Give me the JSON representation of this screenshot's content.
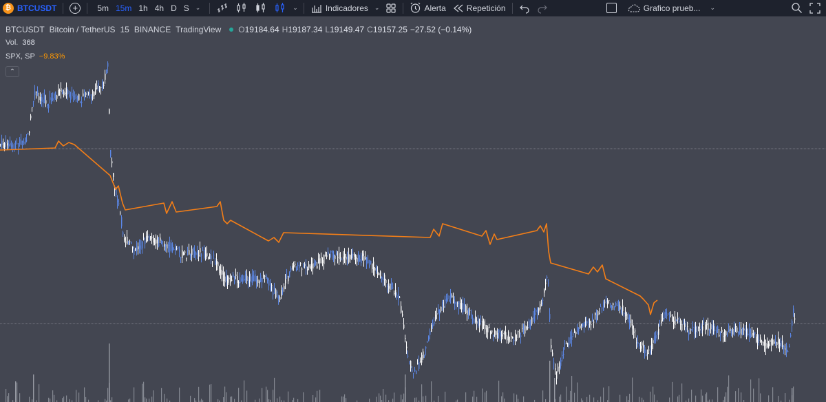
{
  "toolbar": {
    "symbol_badge": "₿",
    "symbol": "BTCUSDT",
    "add_symbol": "+",
    "intervals": [
      "5m",
      "15m",
      "1h",
      "4h",
      "D",
      "S"
    ],
    "active_interval": "15m",
    "indicators_label": "Indicadores",
    "alert_label": "Alerta",
    "replay_label": "Repetición",
    "layout_name": "Grafico prueb...",
    "chevron": "⌄",
    "dropdown_chevron": "⌄"
  },
  "legend": {
    "symbol": "BTCUSDT",
    "name": "Bitcoin / TetherUS",
    "interval": "15",
    "exchange": "BINANCE",
    "source": "TradingView",
    "open_key": "O",
    "open": "19184.64",
    "high_key": "H",
    "high": "19187.34",
    "low_key": "L",
    "low": "19149.47",
    "close_key": "C",
    "close": "19157.25",
    "change": "−27.52 (−0.14%)",
    "volume_label": "Vol.",
    "volume": "368",
    "compare_label": "SPX, SP",
    "compare_value": "−9.83%",
    "collapse_icon": "⌃"
  },
  "colors": {
    "background": "#434651",
    "toolbar": "#1e222d",
    "accent": "#2962ff",
    "candle_up": "#5b87e6",
    "candle_down": "#ffffff",
    "compare_line": "#f57f17",
    "volume": "#b2b5be",
    "price_line": "#8a8d96"
  }
}
